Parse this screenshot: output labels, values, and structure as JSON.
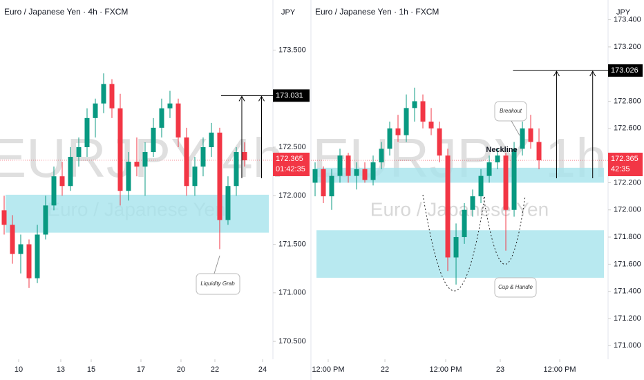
{
  "chart_data": [
    {
      "type": "candlestick",
      "title": "Euro / Japanese Yen · 4h · FXCM",
      "currency": "JPY",
      "watermark": "EURJPY 4h",
      "watermark_sub": "Euro / Japanese Yen",
      "up_color": "#089981",
      "down_color": "#f23645",
      "x": [
        0,
        1,
        2,
        3,
        4,
        5,
        6,
        7,
        8,
        9,
        10,
        11,
        12,
        13,
        14,
        15,
        16,
        17,
        18,
        19,
        20,
        21,
        22,
        23,
        24,
        25,
        26,
        27,
        28,
        29
      ],
      "open": [
        171.85,
        171.7,
        171.4,
        171.5,
        171.15,
        171.6,
        171.9,
        172.2,
        172.1,
        172.4,
        172.5,
        172.8,
        172.95,
        173.15,
        172.9,
        172.05,
        172.35,
        172.3,
        172.45,
        172.7,
        172.9,
        172.95,
        172.6,
        172.1,
        172.3,
        172.5,
        172.65,
        171.75,
        172.1,
        172.45
      ],
      "high": [
        172.0,
        171.8,
        171.6,
        171.55,
        171.7,
        172.0,
        172.3,
        172.35,
        172.5,
        172.6,
        172.9,
        173.0,
        173.26,
        173.2,
        173.05,
        172.45,
        172.6,
        172.55,
        172.8,
        173.0,
        173.08,
        173.0,
        172.7,
        172.4,
        172.6,
        172.75,
        172.7,
        172.2,
        172.5,
        172.55
      ],
      "low": [
        171.6,
        171.3,
        171.2,
        171.05,
        171.1,
        171.55,
        171.85,
        172.0,
        172.05,
        172.3,
        172.4,
        172.6,
        172.85,
        172.8,
        171.9,
        171.95,
        172.2,
        172.0,
        172.4,
        172.6,
        172.8,
        172.5,
        172.0,
        172.0,
        172.2,
        172.4,
        171.45,
        171.7,
        172.0,
        172.3
      ],
      "close": [
        171.7,
        171.4,
        171.5,
        171.15,
        171.6,
        171.9,
        172.2,
        172.1,
        172.4,
        172.5,
        172.8,
        172.95,
        173.15,
        172.9,
        172.05,
        172.35,
        172.3,
        172.45,
        172.7,
        172.9,
        172.95,
        172.6,
        172.1,
        172.3,
        172.5,
        172.65,
        171.75,
        172.1,
        172.45,
        172.365
      ],
      "xlim": [
        -0.5,
        32.42
      ],
      "xticks": [
        {
          "value": 1.75,
          "label": "10"
        },
        {
          "value": 6.83,
          "label": "13"
        },
        {
          "value": 10.5,
          "label": "15"
        },
        {
          "value": 16.5,
          "label": "17"
        },
        {
          "value": 21.33,
          "label": "20"
        },
        {
          "value": 25.42,
          "label": "22"
        },
        {
          "value": 31.17,
          "label": "24"
        }
      ],
      "ylim": [
        170.33,
        173.98
      ],
      "yticks": [
        {
          "value": 170.5,
          "label": "170.500"
        },
        {
          "value": 171,
          "label": "171.000"
        },
        {
          "value": 171.5,
          "label": "171.500"
        },
        {
          "value": 172,
          "label": "172.000"
        },
        {
          "value": 172.5,
          "label": "172.500"
        },
        {
          "value": 173.5,
          "label": "173.500"
        }
      ],
      "zones": [
        [
          171.62,
          172.01
        ]
      ],
      "target": 173.031,
      "last_price": 172.365,
      "countdown": "01:42:35",
      "annotations": [
        "Liquidity Grab"
      ]
    },
    {
      "type": "candlestick",
      "title": "Euro / Japanese Yen · 1h · FXCM",
      "currency": "JPY",
      "watermark": "EURJPY 1h",
      "watermark_sub": "Euro / Japanese Yen",
      "up_color": "#089981",
      "down_color": "#f23645",
      "x": [
        0,
        1,
        2,
        3,
        4,
        5,
        6,
        7,
        8,
        9,
        10,
        11,
        12,
        13,
        14,
        15,
        16,
        17,
        18,
        19,
        20,
        21,
        22,
        23,
        24,
        25,
        26,
        27
      ],
      "open": [
        172.2,
        172.3,
        172.1,
        172.25,
        172.4,
        172.25,
        172.3,
        172.22,
        172.35,
        172.45,
        172.6,
        172.55,
        172.75,
        172.8,
        172.65,
        172.6,
        172.4,
        171.65,
        171.8,
        172.0,
        172.1,
        172.25,
        172.35,
        172.4,
        172.0,
        172.45,
        172.6,
        172.5
      ],
      "high": [
        172.35,
        172.32,
        172.3,
        172.45,
        172.42,
        172.35,
        172.35,
        172.4,
        172.5,
        172.65,
        172.7,
        172.85,
        172.9,
        172.85,
        172.75,
        172.65,
        172.45,
        171.9,
        172.05,
        172.15,
        172.3,
        172.4,
        172.45,
        172.42,
        172.5,
        172.65,
        172.7,
        172.6
      ],
      "low": [
        172.1,
        172.05,
        172.0,
        172.2,
        172.2,
        172.15,
        172.2,
        172.18,
        172.3,
        172.4,
        172.5,
        172.5,
        172.65,
        172.6,
        172.55,
        172.35,
        171.55,
        171.45,
        171.75,
        171.95,
        172.05,
        172.2,
        172.3,
        171.7,
        171.95,
        172.4,
        172.45,
        172.3
      ],
      "close": [
        172.3,
        172.1,
        172.25,
        172.4,
        172.25,
        172.3,
        172.22,
        172.35,
        172.45,
        172.6,
        172.55,
        172.75,
        172.8,
        172.65,
        172.6,
        172.4,
        171.65,
        171.8,
        172.0,
        172.1,
        172.25,
        172.35,
        172.4,
        172.0,
        172.45,
        172.6,
        172.5,
        172.365
      ],
      "xlim": [
        -0.5,
        35.33
      ],
      "xticks": [
        {
          "value": 1.58,
          "label": "12:00 PM"
        },
        {
          "value": 8.42,
          "label": "22"
        },
        {
          "value": 15.75,
          "label": "12:00 PM"
        },
        {
          "value": 22.33,
          "label": "23"
        },
        {
          "value": 29.5,
          "label": "12:00 PM"
        }
      ],
      "ylim": [
        170.91,
        173.52
      ],
      "yticks": [
        {
          "value": 171,
          "label": "171.000"
        },
        {
          "value": 171.2,
          "label": "171.200"
        },
        {
          "value": 171.4,
          "label": "171.400"
        },
        {
          "value": 171.6,
          "label": "171.600"
        },
        {
          "value": 171.8,
          "label": "171.800"
        },
        {
          "value": 172,
          "label": "172.000"
        },
        {
          "value": 172.2,
          "label": "172.200"
        },
        {
          "value": 172.6,
          "label": "172.600"
        },
        {
          "value": 172.8,
          "label": "172.800"
        },
        {
          "value": 173.2,
          "label": "173.200"
        },
        {
          "value": 173.4,
          "label": "173.400"
        }
      ],
      "zones": [
        [
          171.5,
          171.85
        ],
        [
          172.2,
          172.31
        ]
      ],
      "target": 173.026,
      "last_price": 172.365,
      "countdown": "42:35",
      "annotations": [
        "Breakout",
        "Neckline",
        "Cup & Handle"
      ]
    }
  ]
}
